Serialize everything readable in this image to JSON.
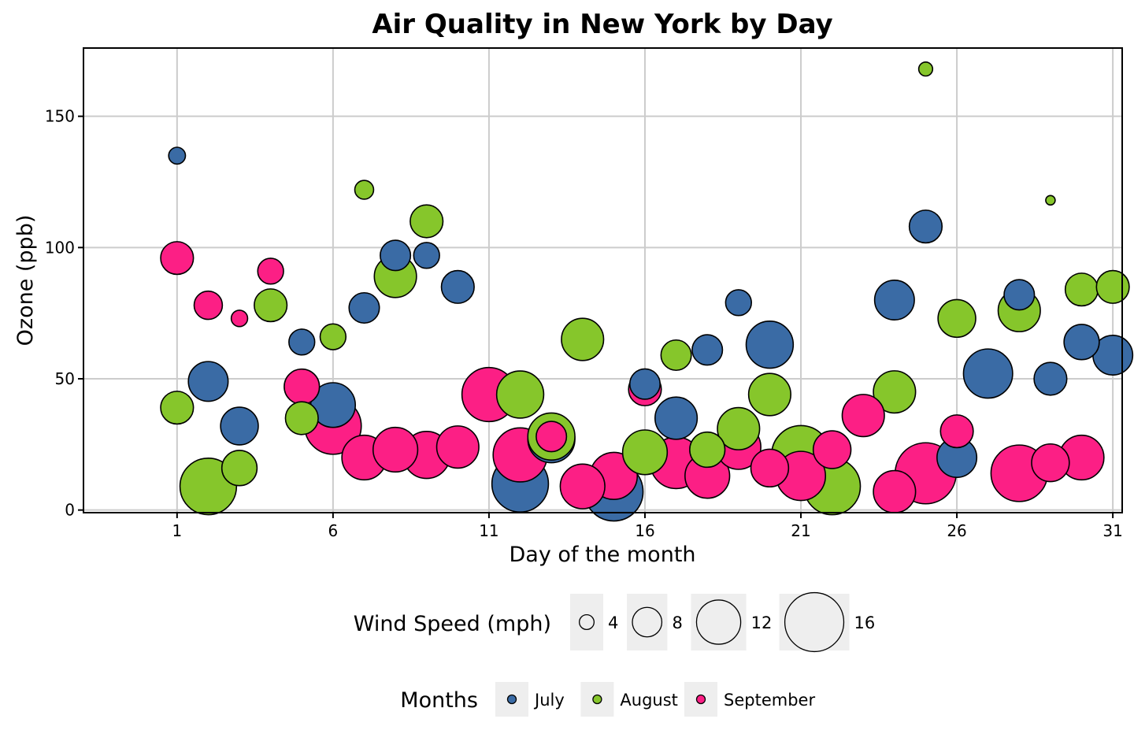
{
  "chart_data": {
    "type": "scatter",
    "title": "Air Quality in New York by Day",
    "xlabel": "Day of the month",
    "ylabel": "Ozone (ppb)",
    "xlim": [
      -2,
      31.3
    ],
    "ylim": [
      -1,
      176
    ],
    "xticks": [
      1,
      6,
      11,
      16,
      21,
      26,
      31
    ],
    "yticks": [
      0,
      50,
      100,
      150
    ],
    "grid": true,
    "size_legend": {
      "title": "Wind Speed (mph)",
      "entries": [
        {
          "label": "4",
          "value": 4
        },
        {
          "label": "8",
          "value": 8
        },
        {
          "label": "12",
          "value": 12
        },
        {
          "label": "16",
          "value": 16
        }
      ]
    },
    "color_legend": {
      "title": "Months",
      "entries": [
        {
          "label": "July",
          "color": "#3a6ba5"
        },
        {
          "label": "August",
          "color": "#86c62b"
        },
        {
          "label": "September",
          "color": "#fc1f85"
        }
      ]
    },
    "series": [
      {
        "name": "July",
        "color": "#3a6ba5",
        "points": [
          {
            "day": 1,
            "ozone": 135,
            "wind": 4.1
          },
          {
            "day": 2,
            "ozone": 49,
            "wind": 9.7
          },
          {
            "day": 3,
            "ozone": 32,
            "wind": 9.2
          },
          {
            "day": 5,
            "ozone": 64,
            "wind": 6.3
          },
          {
            "day": 6,
            "ozone": 40,
            "wind": 10.9
          },
          {
            "day": 7,
            "ozone": 77,
            "wind": 7.4
          },
          {
            "day": 8,
            "ozone": 97,
            "wind": 7.4
          },
          {
            "day": 9,
            "ozone": 97,
            "wind": 6.3
          },
          {
            "day": 10,
            "ozone": 85,
            "wind": 8.0
          },
          {
            "day": 12,
            "ozone": 10,
            "wind": 13.8
          },
          {
            "day": 13,
            "ozone": 27,
            "wind": 11.5
          },
          {
            "day": 15,
            "ozone": 7,
            "wind": 14.3
          },
          {
            "day": 16,
            "ozone": 48,
            "wind": 7.4
          },
          {
            "day": 17,
            "ozone": 35,
            "wind": 10.3
          },
          {
            "day": 18,
            "ozone": 61,
            "wind": 7.4
          },
          {
            "day": 19,
            "ozone": 79,
            "wind": 6.3
          },
          {
            "day": 20,
            "ozone": 63,
            "wind": 11.5
          },
          {
            "day": 24,
            "ozone": 80,
            "wind": 9.7
          },
          {
            "day": 25,
            "ozone": 108,
            "wind": 8.0
          },
          {
            "day": 26,
            "ozone": 20,
            "wind": 9.7
          },
          {
            "day": 27,
            "ozone": 52,
            "wind": 12.0
          },
          {
            "day": 28,
            "ozone": 82,
            "wind": 7.4
          },
          {
            "day": 29,
            "ozone": 50,
            "wind": 8.0
          },
          {
            "day": 30,
            "ozone": 64,
            "wind": 8.6
          },
          {
            "day": 31,
            "ozone": 59,
            "wind": 9.7
          }
        ]
      },
      {
        "name": "August",
        "color": "#86c62b",
        "points": [
          {
            "day": 1,
            "ozone": 39,
            "wind": 8.0
          },
          {
            "day": 2,
            "ozone": 9,
            "wind": 13.8
          },
          {
            "day": 3,
            "ozone": 16,
            "wind": 8.6
          },
          {
            "day": 4,
            "ozone": 78,
            "wind": 8.0
          },
          {
            "day": 5,
            "ozone": 35,
            "wind": 8.0
          },
          {
            "day": 6,
            "ozone": 66,
            "wind": 6.3
          },
          {
            "day": 7,
            "ozone": 122,
            "wind": 4.6
          },
          {
            "day": 8,
            "ozone": 89,
            "wind": 10.3
          },
          {
            "day": 9,
            "ozone": 110,
            "wind": 8.0
          },
          {
            "day": 12,
            "ozone": 44,
            "wind": 11.5
          },
          {
            "day": 13,
            "ozone": 28,
            "wind": 11.5
          },
          {
            "day": 14,
            "ozone": 65,
            "wind": 10.3
          },
          {
            "day": 16,
            "ozone": 22,
            "wind": 10.9
          },
          {
            "day": 17,
            "ozone": 59,
            "wind": 7.4
          },
          {
            "day": 18,
            "ozone": 23,
            "wind": 8.6
          },
          {
            "day": 19,
            "ozone": 31,
            "wind": 10.3
          },
          {
            "day": 20,
            "ozone": 44,
            "wind": 10.3
          },
          {
            "day": 21,
            "ozone": 21,
            "wind": 14.3
          },
          {
            "day": 22,
            "ozone": 9,
            "wind": 13.8
          },
          {
            "day": 24,
            "ozone": 45,
            "wind": 10.3
          },
          {
            "day": 25,
            "ozone": 168,
            "wind": 3.4
          },
          {
            "day": 26,
            "ozone": 73,
            "wind": 9.2
          },
          {
            "day": 28,
            "ozone": 76,
            "wind": 10.3
          },
          {
            "day": 29,
            "ozone": 118,
            "wind": 2.3
          },
          {
            "day": 30,
            "ozone": 84,
            "wind": 8.0
          },
          {
            "day": 31,
            "ozone": 85,
            "wind": 8.0
          }
        ]
      },
      {
        "name": "September",
        "color": "#fc1f85",
        "points": [
          {
            "day": 1,
            "ozone": 96,
            "wind": 8.0
          },
          {
            "day": 2,
            "ozone": 78,
            "wind": 6.9
          },
          {
            "day": 3,
            "ozone": 73,
            "wind": 4.0
          },
          {
            "day": 4,
            "ozone": 91,
            "wind": 6.3
          },
          {
            "day": 5,
            "ozone": 47,
            "wind": 8.6
          },
          {
            "day": 6,
            "ozone": 32,
            "wind": 13.8
          },
          {
            "day": 7,
            "ozone": 20,
            "wind": 10.9
          },
          {
            "day": 8,
            "ozone": 23,
            "wind": 10.9
          },
          {
            "day": 9,
            "ozone": 21,
            "wind": 11.5
          },
          {
            "day": 10,
            "ozone": 24,
            "wind": 10.3
          },
          {
            "day": 11,
            "ozone": 44,
            "wind": 13.2
          },
          {
            "day": 12,
            "ozone": 21,
            "wind": 13.2
          },
          {
            "day": 13,
            "ozone": 28,
            "wind": 7.4
          },
          {
            "day": 14,
            "ozone": 9,
            "wind": 10.9
          },
          {
            "day": 15,
            "ozone": 13,
            "wind": 11.5
          },
          {
            "day": 16,
            "ozone": 46,
            "wind": 8.0
          },
          {
            "day": 17,
            "ozone": 18,
            "wind": 12.6
          },
          {
            "day": 18,
            "ozone": 13,
            "wind": 10.9
          },
          {
            "day": 19,
            "ozone": 24,
            "wind": 10.9
          },
          {
            "day": 20,
            "ozone": 16,
            "wind": 9.2
          },
          {
            "day": 21,
            "ozone": 13,
            "wind": 12.0
          },
          {
            "day": 22,
            "ozone": 23,
            "wind": 9.2
          },
          {
            "day": 23,
            "ozone": 36,
            "wind": 10.3
          },
          {
            "day": 24,
            "ozone": 7,
            "wind": 10.3
          },
          {
            "day": 25,
            "ozone": 14,
            "wind": 14.9
          },
          {
            "day": 26,
            "ozone": 30,
            "wind": 8.0
          },
          {
            "day": 28,
            "ozone": 14,
            "wind": 13.8
          },
          {
            "day": 29,
            "ozone": 18,
            "wind": 9.2
          },
          {
            "day": 30,
            "ozone": 20,
            "wind": 10.9
          }
        ]
      }
    ]
  }
}
